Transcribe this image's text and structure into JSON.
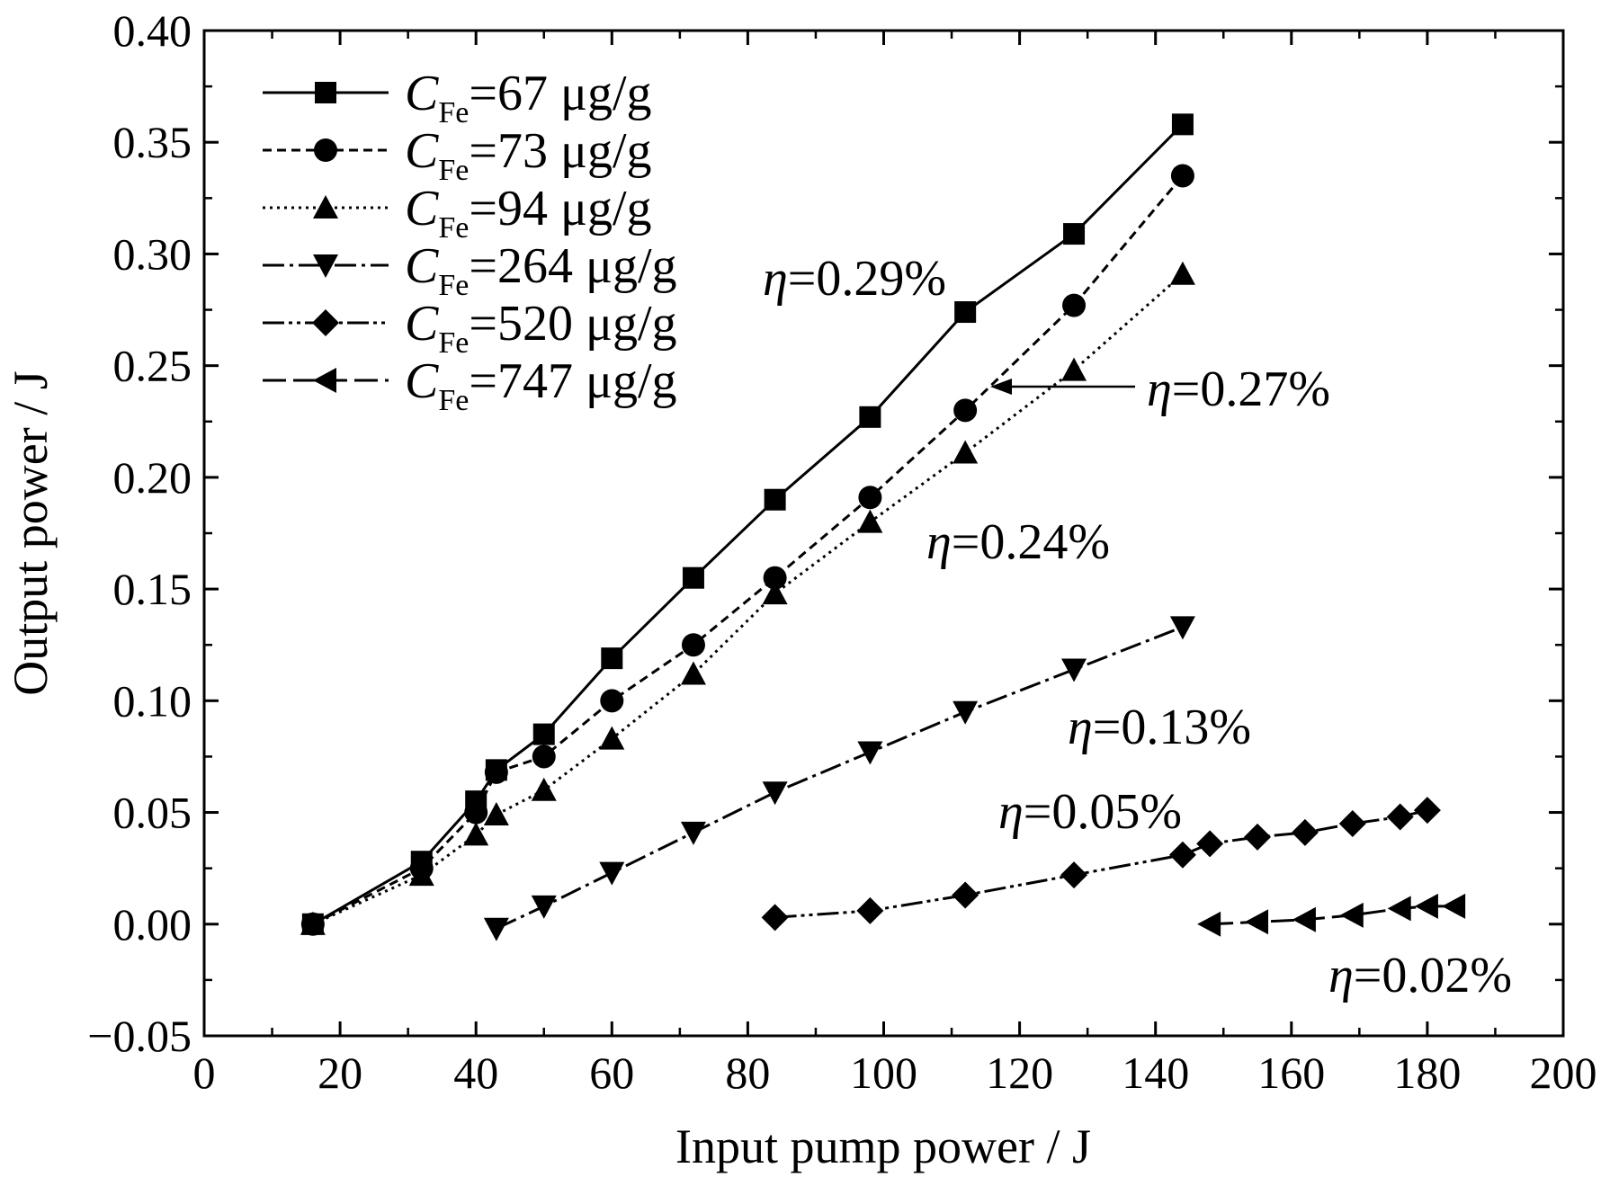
{
  "chart_data": {
    "type": "line",
    "title": "",
    "xlabel": "Input pump power / J",
    "ylabel": "Output power / J",
    "xlim": [
      0,
      200
    ],
    "ylim": [
      -0.05,
      0.4
    ],
    "x_ticks": [
      "0",
      "20",
      "40",
      "60",
      "80",
      "100",
      "120",
      "140",
      "160",
      "180",
      "200"
    ],
    "y_ticks": [
      "−0.05",
      "0.00",
      "0.05",
      "0.10",
      "0.15",
      "0.20",
      "0.25",
      "0.30",
      "0.35",
      "0.40"
    ],
    "grid": false,
    "legend_position": "top-left",
    "series": [
      {
        "name": "C_Fe=67 μg/g",
        "legend": {
          "symbol": "C",
          "subscript": "Fe",
          "rest": "=67 μg/g"
        },
        "marker": "square",
        "line_style": "solid",
        "x": [
          16,
          32,
          40,
          43,
          50,
          60,
          72,
          84,
          98,
          112,
          128,
          144
        ],
        "y": [
          0.0,
          0.028,
          0.055,
          0.069,
          0.085,
          0.119,
          0.155,
          0.19,
          0.227,
          0.274,
          0.309,
          0.358
        ]
      },
      {
        "name": "C_Fe=73 μg/g",
        "legend": {
          "symbol": "C",
          "subscript": "Fe",
          "rest": "=73 μg/g"
        },
        "marker": "circle",
        "line_style": "dashed",
        "x": [
          16,
          32,
          40,
          43,
          50,
          60,
          72,
          84,
          98,
          112,
          128,
          144
        ],
        "y": [
          0.0,
          0.025,
          0.05,
          0.068,
          0.075,
          0.1,
          0.125,
          0.155,
          0.191,
          0.23,
          0.277,
          0.335
        ]
      },
      {
        "name": "C_Fe=94 μg/g",
        "legend": {
          "symbol": "C",
          "subscript": "Fe",
          "rest": "=94 μg/g"
        },
        "marker": "triangle-up",
        "line_style": "dotted",
        "x": [
          16,
          32,
          40,
          43,
          50,
          60,
          72,
          84,
          98,
          112,
          128,
          144
        ],
        "y": [
          0.0,
          0.022,
          0.04,
          0.049,
          0.06,
          0.083,
          0.112,
          0.148,
          0.18,
          0.211,
          0.248,
          0.291
        ]
      },
      {
        "name": "C_Fe=264 μg/g",
        "legend": {
          "symbol": "C",
          "subscript": "Fe",
          "rest": "=264 μg/g"
        },
        "marker": "triangle-down",
        "line_style": "dash-dot",
        "x": [
          43,
          50,
          60,
          72,
          84,
          98,
          112,
          128,
          144
        ],
        "y": [
          -0.002,
          0.008,
          0.023,
          0.041,
          0.059,
          0.077,
          0.095,
          0.114,
          0.133
        ]
      },
      {
        "name": "C_Fe=520 μg/g",
        "legend": {
          "symbol": "C",
          "subscript": "Fe",
          "rest": "=520 μg/g"
        },
        "marker": "diamond",
        "line_style": "dash-dot-dot",
        "x": [
          84,
          98,
          112,
          128,
          144,
          148,
          155,
          162,
          169,
          176,
          180
        ],
        "y": [
          0.003,
          0.006,
          0.013,
          0.022,
          0.031,
          0.036,
          0.039,
          0.041,
          0.045,
          0.048,
          0.051
        ]
      },
      {
        "name": "C_Fe=747 μg/g",
        "legend": {
          "symbol": "C",
          "subscript": "Fe",
          "rest": "=747 μg/g"
        },
        "marker": "triangle-left",
        "line_style": "long-dash",
        "x": [
          148,
          155,
          162,
          169,
          176,
          180,
          184
        ],
        "y": [
          0.0,
          0.001,
          0.002,
          0.004,
          0.007,
          0.008,
          0.008
        ]
      }
    ],
    "annotations": [
      {
        "symbol": "η",
        "text": "=0.29%"
      },
      {
        "symbol": "η",
        "text": "=0.27%"
      },
      {
        "symbol": "η",
        "text": "=0.24%"
      },
      {
        "symbol": "η",
        "text": "=0.13%"
      },
      {
        "symbol": "η",
        "text": "=0.05%"
      },
      {
        "symbol": "η",
        "text": "=0.02%"
      }
    ]
  }
}
